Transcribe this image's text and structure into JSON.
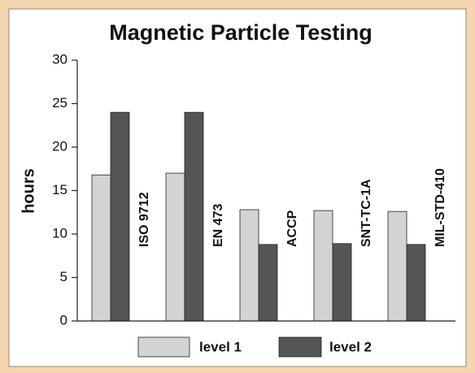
{
  "chart_data": {
    "type": "bar",
    "title": "Magnetic Particle Testing",
    "y_label": "hours",
    "categories": [
      "ISO 9712",
      "EN 473",
      "ACCP",
      "SNT-TC-1A",
      "MIL-STD-410"
    ],
    "series": [
      {
        "name": "level 1",
        "color": "#d3d3d3",
        "values": [
          16.8,
          17,
          12.8,
          12.7,
          12.6
        ]
      },
      {
        "name": "level 2",
        "color": "#555555",
        "values": [
          24,
          24,
          8.8,
          8.9,
          8.8
        ]
      }
    ],
    "ylim": [
      0,
      30
    ],
    "yticks": [
      0,
      5,
      10,
      15,
      20,
      25,
      30
    ],
    "grid": false
  }
}
